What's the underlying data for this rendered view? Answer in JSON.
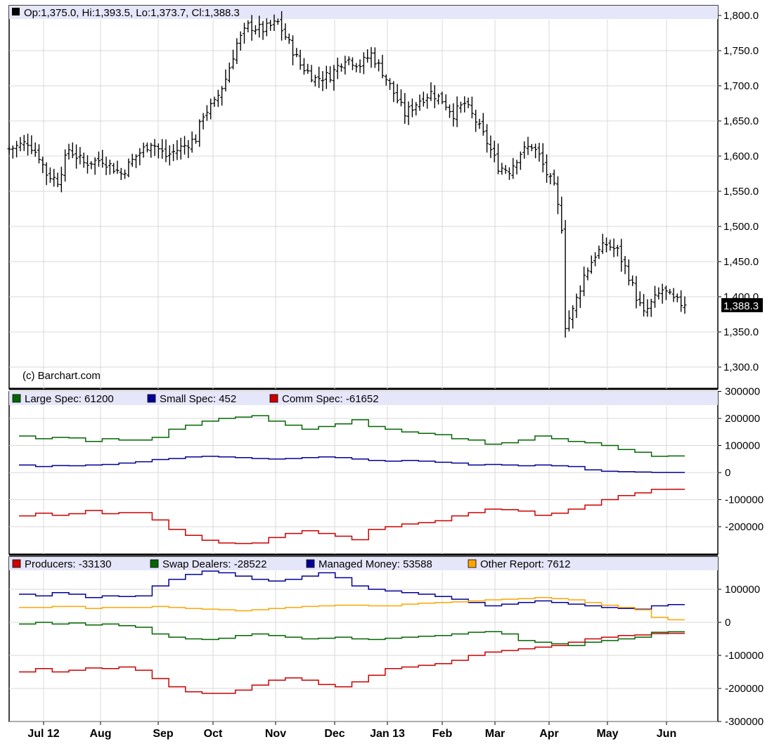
{
  "chart_data": [
    {
      "type": "ohlc",
      "header": "Op:1,375.0, Hi:1,393.5, Lo:1,373.7, Cl:1,388.3",
      "credit": "(c) Barchart.com",
      "last_price_label": "1,388.3",
      "last_price": 1388.3,
      "ylim": [
        1280,
        1815
      ],
      "y_ticks": [
        "1,300.0",
        "1,350.0",
        "1,400.0",
        "1,450.0",
        "1,500.0",
        "1,550.0",
        "1,600.0",
        "1,650.0",
        "1,700.0",
        "1,750.0",
        "1,800.0"
      ],
      "y_tick_values": [
        1300,
        1350,
        1400,
        1450,
        1500,
        1550,
        1600,
        1650,
        1700,
        1750,
        1800
      ],
      "grid": true,
      "close_path": [
        [
          0,
          1610
        ],
        [
          5,
          1620
        ],
        [
          8,
          1600
        ],
        [
          10,
          1575
        ],
        [
          13,
          1565
        ],
        [
          16,
          1610
        ],
        [
          20,
          1590
        ],
        [
          25,
          1595
        ],
        [
          30,
          1575
        ],
        [
          34,
          1600
        ],
        [
          38,
          1620
        ],
        [
          42,
          1600
        ],
        [
          47,
          1615
        ],
        [
          50,
          1625
        ],
        [
          52,
          1660
        ],
        [
          55,
          1675
        ],
        [
          58,
          1710
        ],
        [
          61,
          1760
        ],
        [
          64,
          1785
        ],
        [
          68,
          1780
        ],
        [
          72,
          1790
        ],
        [
          75,
          1760
        ],
        [
          78,
          1730
        ],
        [
          82,
          1710
        ],
        [
          86,
          1715
        ],
        [
          90,
          1740
        ],
        [
          94,
          1730
        ],
        [
          97,
          1745
        ],
        [
          100,
          1720
        ],
        [
          103,
          1690
        ],
        [
          106,
          1660
        ],
        [
          110,
          1680
        ],
        [
          113,
          1690
        ],
        [
          116,
          1680
        ],
        [
          119,
          1660
        ],
        [
          122,
          1675
        ],
        [
          125,
          1650
        ],
        [
          128,
          1620
        ],
        [
          131,
          1585
        ],
        [
          134,
          1580
        ],
        [
          137,
          1605
        ],
        [
          140,
          1615
        ],
        [
          142,
          1600
        ],
        [
          144,
          1575
        ],
        [
          146,
          1555
        ],
        [
          148,
          1500
        ],
        [
          149,
          1360
        ],
        [
          151,
          1380
        ],
        [
          154,
          1430
        ],
        [
          157,
          1460
        ],
        [
          160,
          1475
        ],
        [
          163,
          1465
        ],
        [
          166,
          1430
        ],
        [
          168,
          1400
        ],
        [
          170,
          1375
        ],
        [
          172,
          1390
        ],
        [
          175,
          1410
        ],
        [
          178,
          1395
        ],
        [
          181,
          1388
        ]
      ],
      "candles_count": 182
    },
    {
      "type": "line",
      "title": "",
      "ylim": [
        -300000,
        300000
      ],
      "y_ticks": [
        "300000",
        "200000",
        "100000",
        "0",
        "-100000",
        "-200000"
      ],
      "y_tick_values": [
        300000,
        200000,
        100000,
        0,
        -100000,
        -200000
      ],
      "series": [
        {
          "name": "Large Spec",
          "legend": "Large Spec: 61200",
          "color": "#006600",
          "step": true,
          "values": [
            135000,
            125000,
            130000,
            128000,
            115000,
            125000,
            120000,
            120000,
            130000,
            160000,
            175000,
            190000,
            200000,
            205000,
            210000,
            190000,
            175000,
            160000,
            170000,
            180000,
            195000,
            170000,
            160000,
            150000,
            145000,
            140000,
            125000,
            120000,
            105000,
            110000,
            120000,
            135000,
            125000,
            115000,
            110000,
            100000,
            85000,
            75000,
            60000,
            61200
          ]
        },
        {
          "name": "Small Spec",
          "legend": "Small Spec: 452",
          "color": "#000099",
          "step": true,
          "values": [
            28000,
            22000,
            26000,
            25000,
            28000,
            30000,
            35000,
            40000,
            48000,
            52000,
            58000,
            60000,
            58000,
            55000,
            52000,
            50000,
            52000,
            55000,
            58000,
            55000,
            50000,
            45000,
            42000,
            45000,
            42000,
            38000,
            35000,
            28000,
            30000,
            28000,
            25000,
            28000,
            25000,
            22000,
            10000,
            5000,
            3000,
            2000,
            452,
            452
          ]
        },
        {
          "name": "Comm Spec",
          "legend": "Comm Spec: -61652",
          "color": "#cc0000",
          "step": true,
          "values": [
            -160000,
            -150000,
            -158000,
            -152000,
            -140000,
            -152000,
            -148000,
            -148000,
            -175000,
            -210000,
            -232000,
            -250000,
            -260000,
            -262000,
            -260000,
            -240000,
            -225000,
            -215000,
            -225000,
            -235000,
            -248000,
            -210000,
            -200000,
            -190000,
            -185000,
            -178000,
            -160000,
            -148000,
            -135000,
            -137000,
            -142000,
            -158000,
            -150000,
            -135000,
            -120000,
            -100000,
            -85000,
            -75000,
            -62000,
            -61652
          ]
        }
      ]
    },
    {
      "type": "line",
      "title": "",
      "ylim": [
        -300000,
        200000
      ],
      "y_ticks": [
        "100000",
        "0",
        "-100000",
        "-200000",
        "-300000"
      ],
      "y_tick_values": [
        100000,
        0,
        -100000,
        -200000,
        -300000
      ],
      "series": [
        {
          "name": "Producers",
          "legend": "Producers: -33130",
          "color": "#cc0000",
          "step": true,
          "values": [
            -150000,
            -140000,
            -150000,
            -145000,
            -138000,
            -140000,
            -135000,
            -145000,
            -170000,
            -195000,
            -210000,
            -215000,
            -215000,
            -205000,
            -190000,
            -175000,
            -168000,
            -175000,
            -188000,
            -195000,
            -180000,
            -160000,
            -140000,
            -135000,
            -130000,
            -125000,
            -115000,
            -100000,
            -90000,
            -85000,
            -80000,
            -75000,
            -70000,
            -60000,
            -50000,
            -45000,
            -40000,
            -38000,
            -34000,
            -33130
          ]
        },
        {
          "name": "Swap Dealers",
          "legend": "Swap Dealers: -28522",
          "color": "#006600",
          "step": true,
          "values": [
            -5000,
            0,
            -5000,
            -2000,
            -8000,
            -5000,
            -10000,
            -15000,
            -35000,
            -45000,
            -50000,
            -52000,
            -48000,
            -40000,
            -35000,
            -40000,
            -45000,
            -50000,
            -48000,
            -45000,
            -50000,
            -52000,
            -48000,
            -45000,
            -42000,
            -40000,
            -35000,
            -30000,
            -28000,
            -35000,
            -55000,
            -60000,
            -65000,
            -70000,
            -60000,
            -55000,
            -50000,
            -45000,
            -30000,
            -28522
          ]
        },
        {
          "name": "Managed Money",
          "legend": "Managed Money: 53588",
          "color": "#000099",
          "step": true,
          "values": [
            85000,
            80000,
            90000,
            85000,
            75000,
            80000,
            78000,
            80000,
            110000,
            130000,
            145000,
            155000,
            150000,
            140000,
            130000,
            125000,
            130000,
            140000,
            150000,
            135000,
            110000,
            100000,
            95000,
            90000,
            85000,
            78000,
            70000,
            60000,
            50000,
            55000,
            60000,
            65000,
            60000,
            55000,
            50000,
            45000,
            42000,
            40000,
            50000,
            53588
          ]
        },
        {
          "name": "Other Report",
          "legend": "Other Report: 7612",
          "color": "#ffa500",
          "step": true,
          "values": [
            45000,
            45000,
            48000,
            48000,
            42000,
            45000,
            45000,
            45000,
            48000,
            45000,
            42000,
            40000,
            38000,
            35000,
            38000,
            42000,
            45000,
            48000,
            50000,
            52000,
            52000,
            50000,
            50000,
            55000,
            58000,
            60000,
            62000,
            65000,
            68000,
            70000,
            72000,
            75000,
            72000,
            68000,
            60000,
            52000,
            45000,
            38000,
            15000,
            7612
          ]
        }
      ]
    }
  ],
  "x_axis": {
    "labels": [
      "Jul 12",
      "Aug",
      "Sep",
      "Oct",
      "Nov",
      "Dec",
      "Jan 13",
      "Feb",
      "Mar",
      "Apr",
      "May",
      "Jun"
    ],
    "label_x": [
      62,
      143,
      232,
      303,
      392,
      476,
      551,
      629,
      704,
      781,
      864,
      948
    ],
    "grid_x": [
      62,
      143,
      225,
      303,
      392,
      476,
      551,
      629,
      704,
      781,
      864,
      948
    ]
  }
}
